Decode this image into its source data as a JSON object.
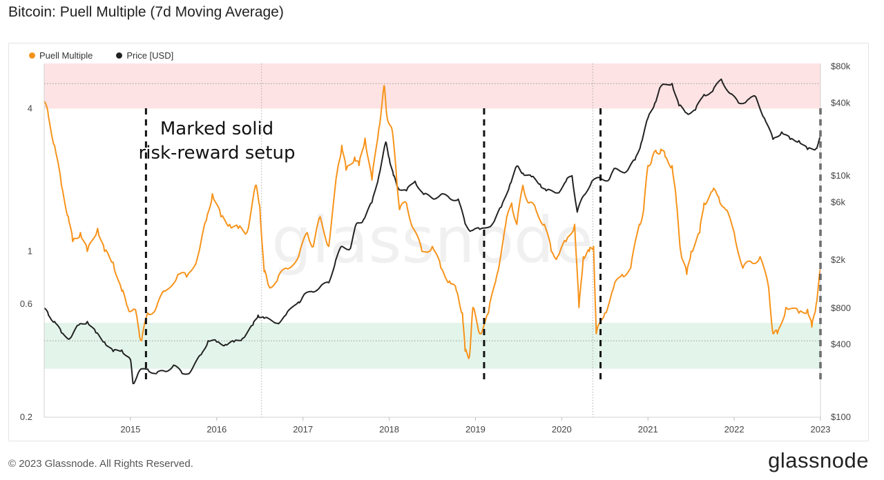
{
  "header": {
    "title": "Bitcoin: Puell Multiple (7d Moving Average)"
  },
  "legend": [
    {
      "label": "Puell Multiple",
      "color": "#f7931a"
    },
    {
      "label": "Price [USD]",
      "color": "#222222"
    }
  ],
  "watermark": "glassnode",
  "annotation": {
    "line1": "Marked solid",
    "line2": "risk-reward setup"
  },
  "footer": {
    "copyright": "© 2023 Glassnode. All Rights Reserved.",
    "brand": "glassnode"
  },
  "chart_data": {
    "type": "line",
    "x_ticks": [
      "2015",
      "2016",
      "2017",
      "2018",
      "2019",
      "2020",
      "2021",
      "2022",
      "2023"
    ],
    "x_range": [
      2014.0,
      2023.0
    ],
    "y_left": {
      "scale": "log",
      "ticks": [
        {
          "v": 0.2,
          "label": "0.2"
        },
        {
          "v": 0.6,
          "label": "0.6"
        },
        {
          "v": 1,
          "label": "1"
        },
        {
          "v": 4,
          "label": "4"
        }
      ],
      "range": [
        0.2,
        6.2
      ]
    },
    "y_right": {
      "scale": "log",
      "ticks": [
        {
          "v": 100,
          "label": "$100"
        },
        {
          "v": 400,
          "label": "$400"
        },
        {
          "v": 800,
          "label": "$800"
        },
        {
          "v": 2000,
          "label": "$2k"
        },
        {
          "v": 6000,
          "label": "$6k"
        },
        {
          "v": 10000,
          "label": "$10k"
        },
        {
          "v": 40000,
          "label": "$40k"
        },
        {
          "v": 80000,
          "label": "$80k"
        }
      ],
      "range": [
        100,
        85000
      ]
    },
    "bands": [
      {
        "name": "red-zone",
        "from": 4.0,
        "to": 6.2,
        "color": "#fde3e3"
      },
      {
        "name": "green-zone",
        "from": 0.32,
        "to": 0.5,
        "color": "#e3f5ea"
      }
    ],
    "reference_lines": [
      5.1,
      0.42
    ],
    "dashed_markers": [
      2015.18,
      2019.1,
      2020.45,
      2023.0
    ],
    "halvings": [
      2016.52,
      2020.36
    ],
    "series": [
      {
        "name": "Puell Multiple",
        "color": "#f7931a",
        "points": [
          [
            2014.0,
            4.3
          ],
          [
            2014.05,
            3.7
          ],
          [
            2014.12,
            2.8
          ],
          [
            2014.2,
            1.9
          ],
          [
            2014.28,
            1.4
          ],
          [
            2014.33,
            1.1
          ],
          [
            2014.42,
            1.2
          ],
          [
            2014.5,
            1.0
          ],
          [
            2014.62,
            1.25
          ],
          [
            2014.7,
            1.0
          ],
          [
            2014.8,
            0.9
          ],
          [
            2014.9,
            0.68
          ],
          [
            2014.97,
            0.58
          ],
          [
            2015.05,
            0.57
          ],
          [
            2015.1,
            0.46
          ],
          [
            2015.13,
            0.42
          ],
          [
            2015.2,
            0.55
          ],
          [
            2015.3,
            0.58
          ],
          [
            2015.4,
            0.68
          ],
          [
            2015.55,
            0.8
          ],
          [
            2015.65,
            0.78
          ],
          [
            2015.78,
            0.95
          ],
          [
            2015.88,
            1.35
          ],
          [
            2015.95,
            1.75
          ],
          [
            2016.05,
            1.4
          ],
          [
            2016.15,
            1.3
          ],
          [
            2016.25,
            1.25
          ],
          [
            2016.35,
            1.2
          ],
          [
            2016.45,
            1.9
          ],
          [
            2016.5,
            1.55
          ],
          [
            2016.55,
            0.82
          ],
          [
            2016.6,
            0.72
          ],
          [
            2016.7,
            0.75
          ],
          [
            2016.8,
            0.85
          ],
          [
            2016.95,
            0.95
          ],
          [
            2017.05,
            1.2
          ],
          [
            2017.12,
            1.05
          ],
          [
            2017.2,
            1.4
          ],
          [
            2017.3,
            1.05
          ],
          [
            2017.4,
            2.2
          ],
          [
            2017.45,
            2.8
          ],
          [
            2017.5,
            2.2
          ],
          [
            2017.6,
            2.5
          ],
          [
            2017.65,
            2.3
          ],
          [
            2017.72,
            3.0
          ],
          [
            2017.8,
            2.0
          ],
          [
            2017.88,
            3.3
          ],
          [
            2017.94,
            5.0
          ],
          [
            2017.97,
            3.8
          ],
          [
            2018.03,
            3.3
          ],
          [
            2018.08,
            2.2
          ],
          [
            2018.12,
            1.5
          ],
          [
            2018.2,
            1.6
          ],
          [
            2018.28,
            1.25
          ],
          [
            2018.38,
            1.0
          ],
          [
            2018.5,
            1.05
          ],
          [
            2018.6,
            0.85
          ],
          [
            2018.7,
            0.75
          ],
          [
            2018.78,
            0.68
          ],
          [
            2018.85,
            0.55
          ],
          [
            2018.88,
            0.38
          ],
          [
            2018.93,
            0.36
          ],
          [
            2018.97,
            0.58
          ],
          [
            2019.05,
            0.45
          ],
          [
            2019.15,
            0.55
          ],
          [
            2019.25,
            0.8
          ],
          [
            2019.35,
            1.3
          ],
          [
            2019.42,
            1.6
          ],
          [
            2019.48,
            1.3
          ],
          [
            2019.55,
            1.9
          ],
          [
            2019.62,
            1.6
          ],
          [
            2019.7,
            1.5
          ],
          [
            2019.8,
            1.3
          ],
          [
            2019.88,
            1.0
          ],
          [
            2019.95,
            0.95
          ],
          [
            2020.05,
            1.1
          ],
          [
            2020.15,
            1.3
          ],
          [
            2020.2,
            0.58
          ],
          [
            2020.25,
            0.95
          ],
          [
            2020.32,
            1.0
          ],
          [
            2020.37,
            1.05
          ],
          [
            2020.4,
            0.45
          ],
          [
            2020.5,
            0.55
          ],
          [
            2020.6,
            0.7
          ],
          [
            2020.7,
            0.8
          ],
          [
            2020.8,
            0.85
          ],
          [
            2020.9,
            1.3
          ],
          [
            2020.95,
            1.5
          ],
          [
            2021.0,
            2.3
          ],
          [
            2021.05,
            2.5
          ],
          [
            2021.1,
            2.6
          ],
          [
            2021.15,
            2.7
          ],
          [
            2021.2,
            2.5
          ],
          [
            2021.28,
            2.3
          ],
          [
            2021.33,
            1.6
          ],
          [
            2021.38,
            1.0
          ],
          [
            2021.45,
            0.8
          ],
          [
            2021.5,
            1.0
          ],
          [
            2021.6,
            1.2
          ],
          [
            2021.65,
            1.6
          ],
          [
            2021.75,
            1.8
          ],
          [
            2021.82,
            1.7
          ],
          [
            2021.9,
            1.5
          ],
          [
            2022.0,
            1.2
          ],
          [
            2022.1,
            0.85
          ],
          [
            2022.2,
            0.9
          ],
          [
            2022.3,
            0.95
          ],
          [
            2022.4,
            0.7
          ],
          [
            2022.45,
            0.45
          ],
          [
            2022.5,
            0.45
          ],
          [
            2022.6,
            0.58
          ],
          [
            2022.75,
            0.55
          ],
          [
            2022.85,
            0.57
          ],
          [
            2022.9,
            0.48
          ],
          [
            2022.95,
            0.6
          ],
          [
            2023.0,
            0.85
          ]
        ]
      },
      {
        "name": "Price [USD]",
        "color": "#222222",
        "points": [
          [
            2014.0,
            800
          ],
          [
            2014.05,
            700
          ],
          [
            2014.12,
            620
          ],
          [
            2014.2,
            500
          ],
          [
            2014.3,
            450
          ],
          [
            2014.4,
            580
          ],
          [
            2014.5,
            620
          ],
          [
            2014.6,
            500
          ],
          [
            2014.7,
            420
          ],
          [
            2014.8,
            350
          ],
          [
            2014.9,
            360
          ],
          [
            2015.0,
            300
          ],
          [
            2015.03,
            190
          ],
          [
            2015.1,
            240
          ],
          [
            2015.2,
            250
          ],
          [
            2015.3,
            230
          ],
          [
            2015.4,
            240
          ],
          [
            2015.5,
            270
          ],
          [
            2015.6,
            230
          ],
          [
            2015.7,
            240
          ],
          [
            2015.82,
            330
          ],
          [
            2015.9,
            430
          ],
          [
            2016.0,
            420
          ],
          [
            2016.1,
            400
          ],
          [
            2016.2,
            420
          ],
          [
            2016.3,
            450
          ],
          [
            2016.42,
            580
          ],
          [
            2016.48,
            700
          ],
          [
            2016.55,
            660
          ],
          [
            2016.7,
            600
          ],
          [
            2016.8,
            700
          ],
          [
            2016.95,
            900
          ],
          [
            2017.0,
            1000
          ],
          [
            2017.1,
            1100
          ],
          [
            2017.2,
            1200
          ],
          [
            2017.3,
            1300
          ],
          [
            2017.38,
            2000
          ],
          [
            2017.45,
            2600
          ],
          [
            2017.55,
            2500
          ],
          [
            2017.62,
            4000
          ],
          [
            2017.7,
            4300
          ],
          [
            2017.8,
            6000
          ],
          [
            2017.88,
            10000
          ],
          [
            2017.96,
            19000
          ],
          [
            2018.0,
            14000
          ],
          [
            2018.05,
            10000
          ],
          [
            2018.1,
            8000
          ],
          [
            2018.2,
            7500
          ],
          [
            2018.3,
            9000
          ],
          [
            2018.4,
            7000
          ],
          [
            2018.5,
            6500
          ],
          [
            2018.6,
            7000
          ],
          [
            2018.7,
            6500
          ],
          [
            2018.8,
            6400
          ],
          [
            2018.88,
            4000
          ],
          [
            2018.95,
            3500
          ],
          [
            2019.05,
            3600
          ],
          [
            2019.2,
            4000
          ],
          [
            2019.3,
            5500
          ],
          [
            2019.4,
            8500
          ],
          [
            2019.48,
            12000
          ],
          [
            2019.55,
            10500
          ],
          [
            2019.65,
            9800
          ],
          [
            2019.75,
            8500
          ],
          [
            2019.82,
            7500
          ],
          [
            2019.95,
            7200
          ],
          [
            2020.05,
            9000
          ],
          [
            2020.12,
            10000
          ],
          [
            2020.18,
            5000
          ],
          [
            2020.25,
            6800
          ],
          [
            2020.35,
            9000
          ],
          [
            2020.45,
            9500
          ],
          [
            2020.55,
            9300
          ],
          [
            2020.62,
            11500
          ],
          [
            2020.75,
            10800
          ],
          [
            2020.85,
            13500
          ],
          [
            2020.92,
            18500
          ],
          [
            2021.0,
            30000
          ],
          [
            2021.08,
            40000
          ],
          [
            2021.15,
            55000
          ],
          [
            2021.28,
            58000
          ],
          [
            2021.36,
            38000
          ],
          [
            2021.45,
            33000
          ],
          [
            2021.55,
            35000
          ],
          [
            2021.65,
            47000
          ],
          [
            2021.75,
            50000
          ],
          [
            2021.85,
            63000
          ],
          [
            2021.95,
            48000
          ],
          [
            2022.05,
            40000
          ],
          [
            2022.15,
            42000
          ],
          [
            2022.25,
            45000
          ],
          [
            2022.35,
            30000
          ],
          [
            2022.45,
            20000
          ],
          [
            2022.55,
            23000
          ],
          [
            2022.65,
            20000
          ],
          [
            2022.75,
            19500
          ],
          [
            2022.85,
            16500
          ],
          [
            2022.95,
            16800
          ],
          [
            2023.0,
            21000
          ]
        ]
      }
    ]
  }
}
